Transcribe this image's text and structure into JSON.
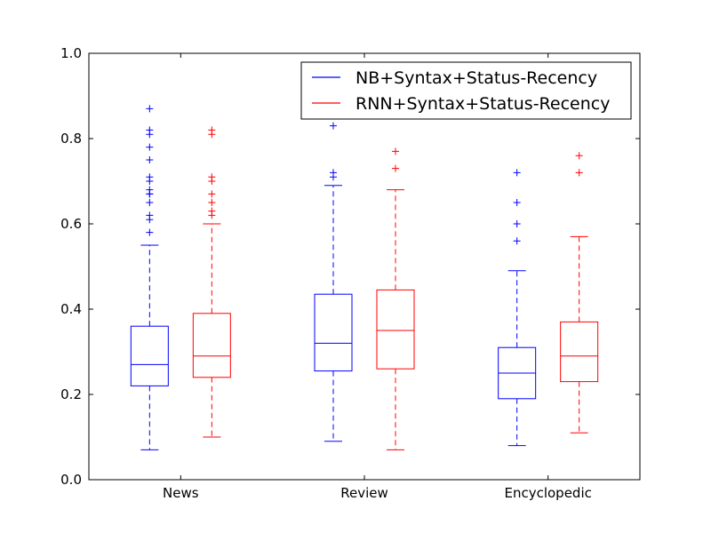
{
  "chart_data": {
    "type": "box",
    "categories": [
      "News",
      "Review",
      "Encyclopedic"
    ],
    "ylim": [
      0.0,
      1.0
    ],
    "yticks": [
      "0.0",
      "0.2",
      "0.4",
      "0.6",
      "0.8",
      "1.0"
    ],
    "grid": false,
    "legend_position": "top-right",
    "series": [
      {
        "name": "NB+Syntax+Status-Recency",
        "color": "#0000ff",
        "boxes": [
          {
            "whisker_low": 0.07,
            "q1": 0.22,
            "median": 0.27,
            "q3": 0.36,
            "whisker_high": 0.55,
            "outliers": [
              0.58,
              0.61,
              0.62,
              0.65,
              0.67,
              0.67,
              0.68,
              0.7,
              0.71,
              0.75,
              0.78,
              0.81,
              0.82,
              0.87
            ]
          },
          {
            "whisker_low": 0.09,
            "q1": 0.255,
            "median": 0.32,
            "q3": 0.435,
            "whisker_high": 0.69,
            "outliers": [
              0.71,
              0.72,
              0.83
            ]
          },
          {
            "whisker_low": 0.08,
            "q1": 0.19,
            "median": 0.25,
            "q3": 0.31,
            "whisker_high": 0.49,
            "outliers": [
              0.56,
              0.6,
              0.65,
              0.72
            ]
          }
        ]
      },
      {
        "name": "RNN+Syntax+Status-Recency",
        "color": "#ff0000",
        "boxes": [
          {
            "whisker_low": 0.1,
            "q1": 0.24,
            "median": 0.29,
            "q3": 0.39,
            "whisker_high": 0.6,
            "outliers": [
              0.62,
              0.63,
              0.65,
              0.67,
              0.7,
              0.71,
              0.81,
              0.82
            ]
          },
          {
            "whisker_low": 0.07,
            "q1": 0.26,
            "median": 0.35,
            "q3": 0.445,
            "whisker_high": 0.68,
            "outliers": [
              0.73,
              0.77
            ]
          },
          {
            "whisker_low": 0.11,
            "q1": 0.23,
            "median": 0.29,
            "q3": 0.37,
            "whisker_high": 0.57,
            "outliers": [
              0.72,
              0.76
            ]
          }
        ]
      }
    ]
  }
}
